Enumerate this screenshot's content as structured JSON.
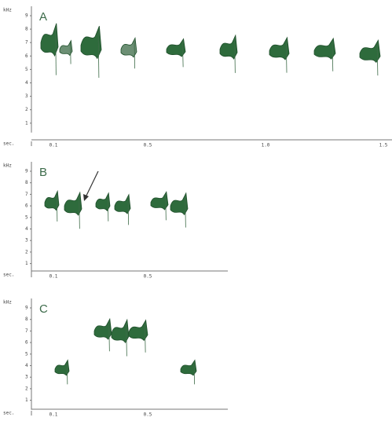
{
  "panels": [
    {
      "label": "A",
      "y_unit": "kHz",
      "x_unit": "sec.",
      "yticks": [
        "1",
        "2",
        "3",
        "4",
        "5",
        "6",
        "7",
        "8",
        "9"
      ],
      "xticks": [
        "0.1",
        "0.5",
        "1.0",
        "1.5"
      ]
    },
    {
      "label": "B",
      "y_unit": "kHz",
      "x_unit": "sec.",
      "yticks": [
        "1",
        "2",
        "3",
        "4",
        "5",
        "6",
        "7",
        "8",
        "9"
      ],
      "xticks": [
        "0.1",
        "0.5"
      ]
    },
    {
      "label": "C",
      "y_unit": "kHz",
      "x_unit": "sec.",
      "yticks": [
        "1",
        "2",
        "3",
        "4",
        "5",
        "6",
        "7",
        "8",
        "9"
      ],
      "xticks": [
        "0.1",
        "0.5"
      ]
    }
  ]
}
